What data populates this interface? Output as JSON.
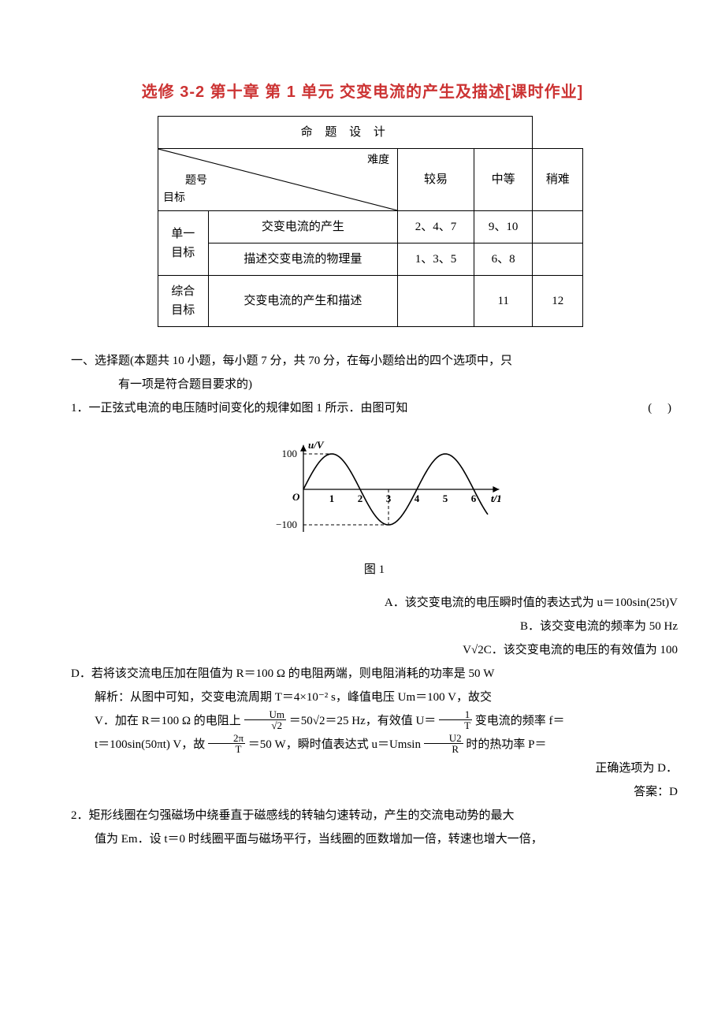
{
  "title": "选修 3-2  第十章  第 1 单元  交变电流的产生及描述[课时作业]",
  "table": {
    "header": "命 题 设 计",
    "diag": {
      "top": "难度",
      "mid": "题号",
      "bot": "目标"
    },
    "cols": [
      "较易",
      "中等",
      "稍难"
    ],
    "rows": [
      {
        "group": "单一目标",
        "sub": "交变电流的产生",
        "easy": "2、4、7",
        "mid": "9、10",
        "hard": ""
      },
      {
        "group": "单一目标",
        "sub": "描述交变电流的物理量",
        "easy": "1、3、5",
        "mid": "6、8",
        "hard": ""
      },
      {
        "group": "综合目标",
        "sub": "交变电流的产生和描述",
        "easy": "",
        "mid": "11",
        "hard": "12"
      }
    ]
  },
  "section1": {
    "heading": "一、选择题(本题共 10 小题，每小题 7 分，共 70 分，在每小题给出的四个选项中，只",
    "heading2": "有一项是符合题目要求的)",
    "q1": {
      "stem": "1．一正弦式电流的电压随时间变化的规律如图 1 所示．由图可知",
      "paren": "(      )",
      "fig_caption": "图 1",
      "chart": {
        "type": "line",
        "title": "",
        "x_label": "t/10⁻² s",
        "y_label": "u/V",
        "xlim": [
          0,
          6.5
        ],
        "ylim": [
          -120,
          120
        ],
        "yticks": [
          -100,
          100
        ],
        "xticks": [
          1,
          2,
          3,
          4,
          5,
          6
        ],
        "line_color": "#000000",
        "axis_color": "#000000",
        "dash_color": "#000000",
        "background": "#ffffff",
        "line_width": 1.6,
        "amplitude": 100,
        "period_x": 4,
        "font_size": 13
      },
      "optA_right": "A．该交变电流的电压瞬时值的表达式为 u＝100sin(25t)V",
      "optB": "B．该交变电流的频率为 50 Hz",
      "optC_prefix": "V√2",
      "optC": "C．该交变电流的电压的有效值为 100",
      "optD": "D．若将该交流电压加在阻值为 R＝100  Ω 的电阻两端，则电阻消耗的功率是 50 W",
      "sol1": "解析：从图中可知，交变电流周期 T＝4×10⁻²   s，峰值电压 Um＝100   V，故交",
      "sol2_a": "V．加在 R＝100   Ω 的电阻上",
      "sol2_frac1_num": "Um",
      "sol2_frac1_den": "√2",
      "sol2_b": "＝50√2＝25  Hz，有效值 U＝",
      "sol2_frac2_num": "1",
      "sol2_frac2_den": "T",
      "sol2_c": "变电流的频率 f＝",
      "sol3_a": "t＝100sin(50πt)   V，故 ",
      "sol3_frac1_num": "2π",
      "sol3_frac1_den": "T",
      "sol3_b": " ＝50  W，瞬时值表达式 u＝Umsin ",
      "sol3_frac2_num": "U2",
      "sol3_frac2_den": "R",
      "sol3_c": "时的热功率 P＝",
      "sol4": "正确选项为 D．",
      "ans": "答案：D"
    },
    "q2": {
      "line1": "2．矩形线圈在匀强磁场中绕垂直于磁感线的转轴匀速转动，产生的交流电动势的最大",
      "line2": "值为 Em．设 t＝0 时线圈平面与磁场平行，当线圈的匝数增加一倍，转速也增大一倍，"
    }
  }
}
